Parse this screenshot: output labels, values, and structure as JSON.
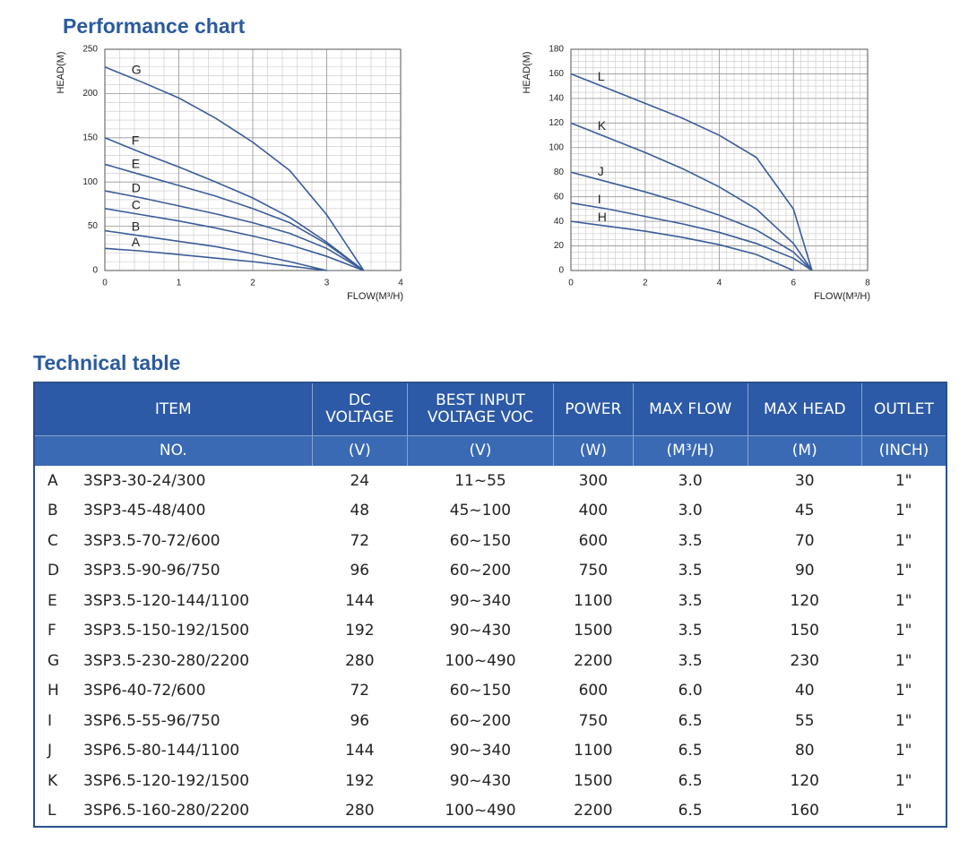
{
  "headings": {
    "performance_title": "Performance chart",
    "table_title": "Technical table"
  },
  "chart_data": [
    {
      "type": "line",
      "x_label": "FLOW(M³/H)",
      "y_label": "HEAD(M)",
      "x": [
        0,
        0.5,
        1,
        1.5,
        2,
        2.5,
        3,
        3.5
      ],
      "series": [
        {
          "name": "A",
          "color": "#3b5c9a",
          "values": [
            25,
            22,
            18,
            14,
            10,
            5,
            0,
            null
          ]
        },
        {
          "name": "B",
          "color": "#3b5c9a",
          "values": [
            45,
            39,
            33,
            27,
            19,
            10,
            0,
            null
          ]
        },
        {
          "name": "C",
          "color": "#3b5c9a",
          "values": [
            70,
            63,
            56,
            48,
            39,
            29,
            16,
            0
          ]
        },
        {
          "name": "D",
          "color": "#3b5c9a",
          "values": [
            90,
            82,
            73,
            64,
            54,
            42,
            25,
            0
          ]
        },
        {
          "name": "E",
          "color": "#3b5c9a",
          "values": [
            120,
            108,
            96,
            84,
            70,
            54,
            30,
            0
          ]
        },
        {
          "name": "F",
          "color": "#3b5c9a",
          "values": [
            150,
            133,
            117,
            100,
            82,
            60,
            32,
            0
          ]
        },
        {
          "name": "G",
          "color": "#3b5c9a",
          "values": [
            230,
            213,
            195,
            172,
            145,
            113,
            63,
            0
          ]
        }
      ],
      "xlim": [
        0,
        4
      ],
      "ylim": [
        0,
        250
      ],
      "xticks": [
        0,
        1,
        2,
        3,
        4
      ],
      "yticks": [
        0,
        50,
        100,
        150,
        200,
        250
      ],
      "grid": true,
      "minor_grid": {
        "x": 0.2,
        "y": 10
      }
    },
    {
      "type": "line",
      "x_label": "FLOW(M³/H)",
      "y_label": "HEAD(M)",
      "x": [
        0,
        1,
        2,
        3,
        4,
        5,
        6,
        6.5
      ],
      "series": [
        {
          "name": "H",
          "color": "#3b5c9a",
          "values": [
            40,
            36,
            32,
            27,
            21,
            13,
            0,
            null
          ]
        },
        {
          "name": "I",
          "color": "#3b5c9a",
          "values": [
            55,
            50,
            44,
            38,
            31,
            22,
            10,
            0
          ]
        },
        {
          "name": "J",
          "color": "#3b5c9a",
          "values": [
            80,
            72,
            64,
            55,
            45,
            33,
            15,
            0
          ]
        },
        {
          "name": "K",
          "color": "#3b5c9a",
          "values": [
            120,
            108,
            96,
            83,
            68,
            50,
            22,
            0
          ]
        },
        {
          "name": "L",
          "color": "#3b5c9a",
          "values": [
            160,
            148,
            136,
            124,
            110,
            92,
            50,
            0
          ]
        }
      ],
      "xlim": [
        0,
        8
      ],
      "ylim": [
        0,
        180
      ],
      "xticks": [
        0,
        2,
        4,
        6,
        8
      ],
      "yticks": [
        0,
        20,
        40,
        60,
        80,
        100,
        120,
        140,
        160,
        180
      ],
      "grid": true,
      "minor_grid": {
        "x": 0.2,
        "y": 5
      }
    }
  ],
  "table": {
    "header": [
      [
        "ITEM",
        "DC\nVOLTAGE",
        "BEST INPUT\nVOLTAGE VOC",
        "POWER",
        "MAX FLOW",
        "MAX HEAD",
        "OUTLET"
      ],
      [
        "NO.",
        "(V)",
        "(V)",
        "(W)",
        "(M³/H)",
        "(M)",
        "(INCH)"
      ]
    ],
    "rows": [
      [
        "A",
        "3SP3-30-24/300",
        "24",
        "11~55",
        "300",
        "3.0",
        "30",
        "1\""
      ],
      [
        "B",
        "3SP3-45-48/400",
        "48",
        "45~100",
        "400",
        "3.0",
        "45",
        "1\""
      ],
      [
        "C",
        "3SP3.5-70-72/600",
        "72",
        "60~150",
        "600",
        "3.5",
        "70",
        "1\""
      ],
      [
        "D",
        "3SP3.5-90-96/750",
        "96",
        "60~200",
        "750",
        "3.5",
        "90",
        "1\""
      ],
      [
        "E",
        "3SP3.5-120-144/1100",
        "144",
        "90~340",
        "1100",
        "3.5",
        "120",
        "1\""
      ],
      [
        "F",
        "3SP3.5-150-192/1500",
        "192",
        "90~430",
        "1500",
        "3.5",
        "150",
        "1\""
      ],
      [
        "G",
        "3SP3.5-230-280/2200",
        "280",
        "100~490",
        "2200",
        "3.5",
        "230",
        "1\""
      ],
      [
        "H",
        "3SP6-40-72/600",
        "72",
        "60~150",
        "600",
        "6.0",
        "40",
        "1\""
      ],
      [
        "I",
        "3SP6.5-55-96/750",
        "96",
        "60~200",
        "750",
        "6.5",
        "55",
        "1\""
      ],
      [
        "J",
        "3SP6.5-80-144/1100",
        "144",
        "90~340",
        "1100",
        "6.5",
        "80",
        "1\""
      ],
      [
        "K",
        "3SP6.5-120-192/1500",
        "192",
        "90~430",
        "1500",
        "6.5",
        "120",
        "1\""
      ],
      [
        "L",
        "3SP6.5-160-280/2200",
        "280",
        "100~490",
        "2200",
        "6.5",
        "160",
        "1\""
      ]
    ]
  }
}
